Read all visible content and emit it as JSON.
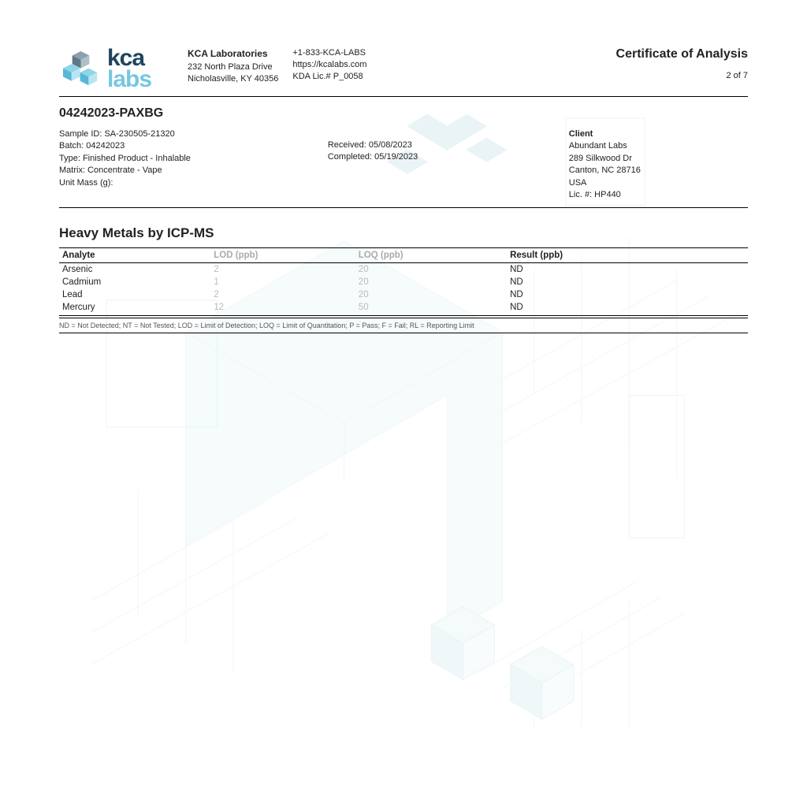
{
  "colors": {
    "text": "#222222",
    "logo_dark": "#1d4560",
    "logo_light": "#76c7e0",
    "logo_cube_dark": "#6c8391",
    "gray_col": "#aaaaaa",
    "gray_cell": "#bbbbbb",
    "rule": "#000000",
    "watermark": "#b7d9e2"
  },
  "header": {
    "logo": {
      "top": "kca",
      "bottom": "labs"
    },
    "company": {
      "name": "KCA Laboratories",
      "addr1": "232 North Plaza Drive",
      "addr2": "Nicholasville, KY 40356"
    },
    "contact": {
      "phone": "+1-833-KCA-LABS",
      "url": "https://kcalabs.com",
      "lic": "KDA Lic.# P_0058"
    },
    "cert_title": "Certificate of Analysis",
    "page": "2 of 7"
  },
  "sample_number": "04242023-PAXBG",
  "sample": {
    "id": "Sample ID: SA-230505-21320",
    "batch": "Batch: 04242023",
    "type": "Type: Finished Product - Inhalable",
    "matrix": "Matrix: Concentrate - Vape",
    "unit_mass": "Unit Mass (g):"
  },
  "dates": {
    "received": "Received: 05/08/2023",
    "completed": "Completed: 05/19/2023"
  },
  "client": {
    "hdr": "Client",
    "name": "Abundant Labs",
    "addr1": "289 Silkwood Dr",
    "addr2": "Canton, NC 28716",
    "country": "USA",
    "lic": "Lic. #: HP440"
  },
  "section_title": "Heavy Metals by ICP-MS",
  "table": {
    "columns": [
      "Analyte",
      "LOD (ppb)",
      "LOQ (ppb)",
      "Result (ppb)"
    ],
    "col_widths": [
      "22%",
      "21%",
      "22%",
      "35%"
    ],
    "gray_cols": [
      1,
      2
    ],
    "rows": [
      [
        "Arsenic",
        "2",
        "20",
        "ND"
      ],
      [
        "Cadmium",
        "1",
        "20",
        "ND"
      ],
      [
        "Lead",
        "2",
        "20",
        "ND"
      ],
      [
        "Mercury",
        "12",
        "50",
        "ND"
      ]
    ]
  },
  "legend": "ND = Not Detected; NT = Not Tested; LOD = Limit of Detection; LOQ = Limit of Quantitation; P = Pass; F = Fail; RL = Reporting Limit"
}
